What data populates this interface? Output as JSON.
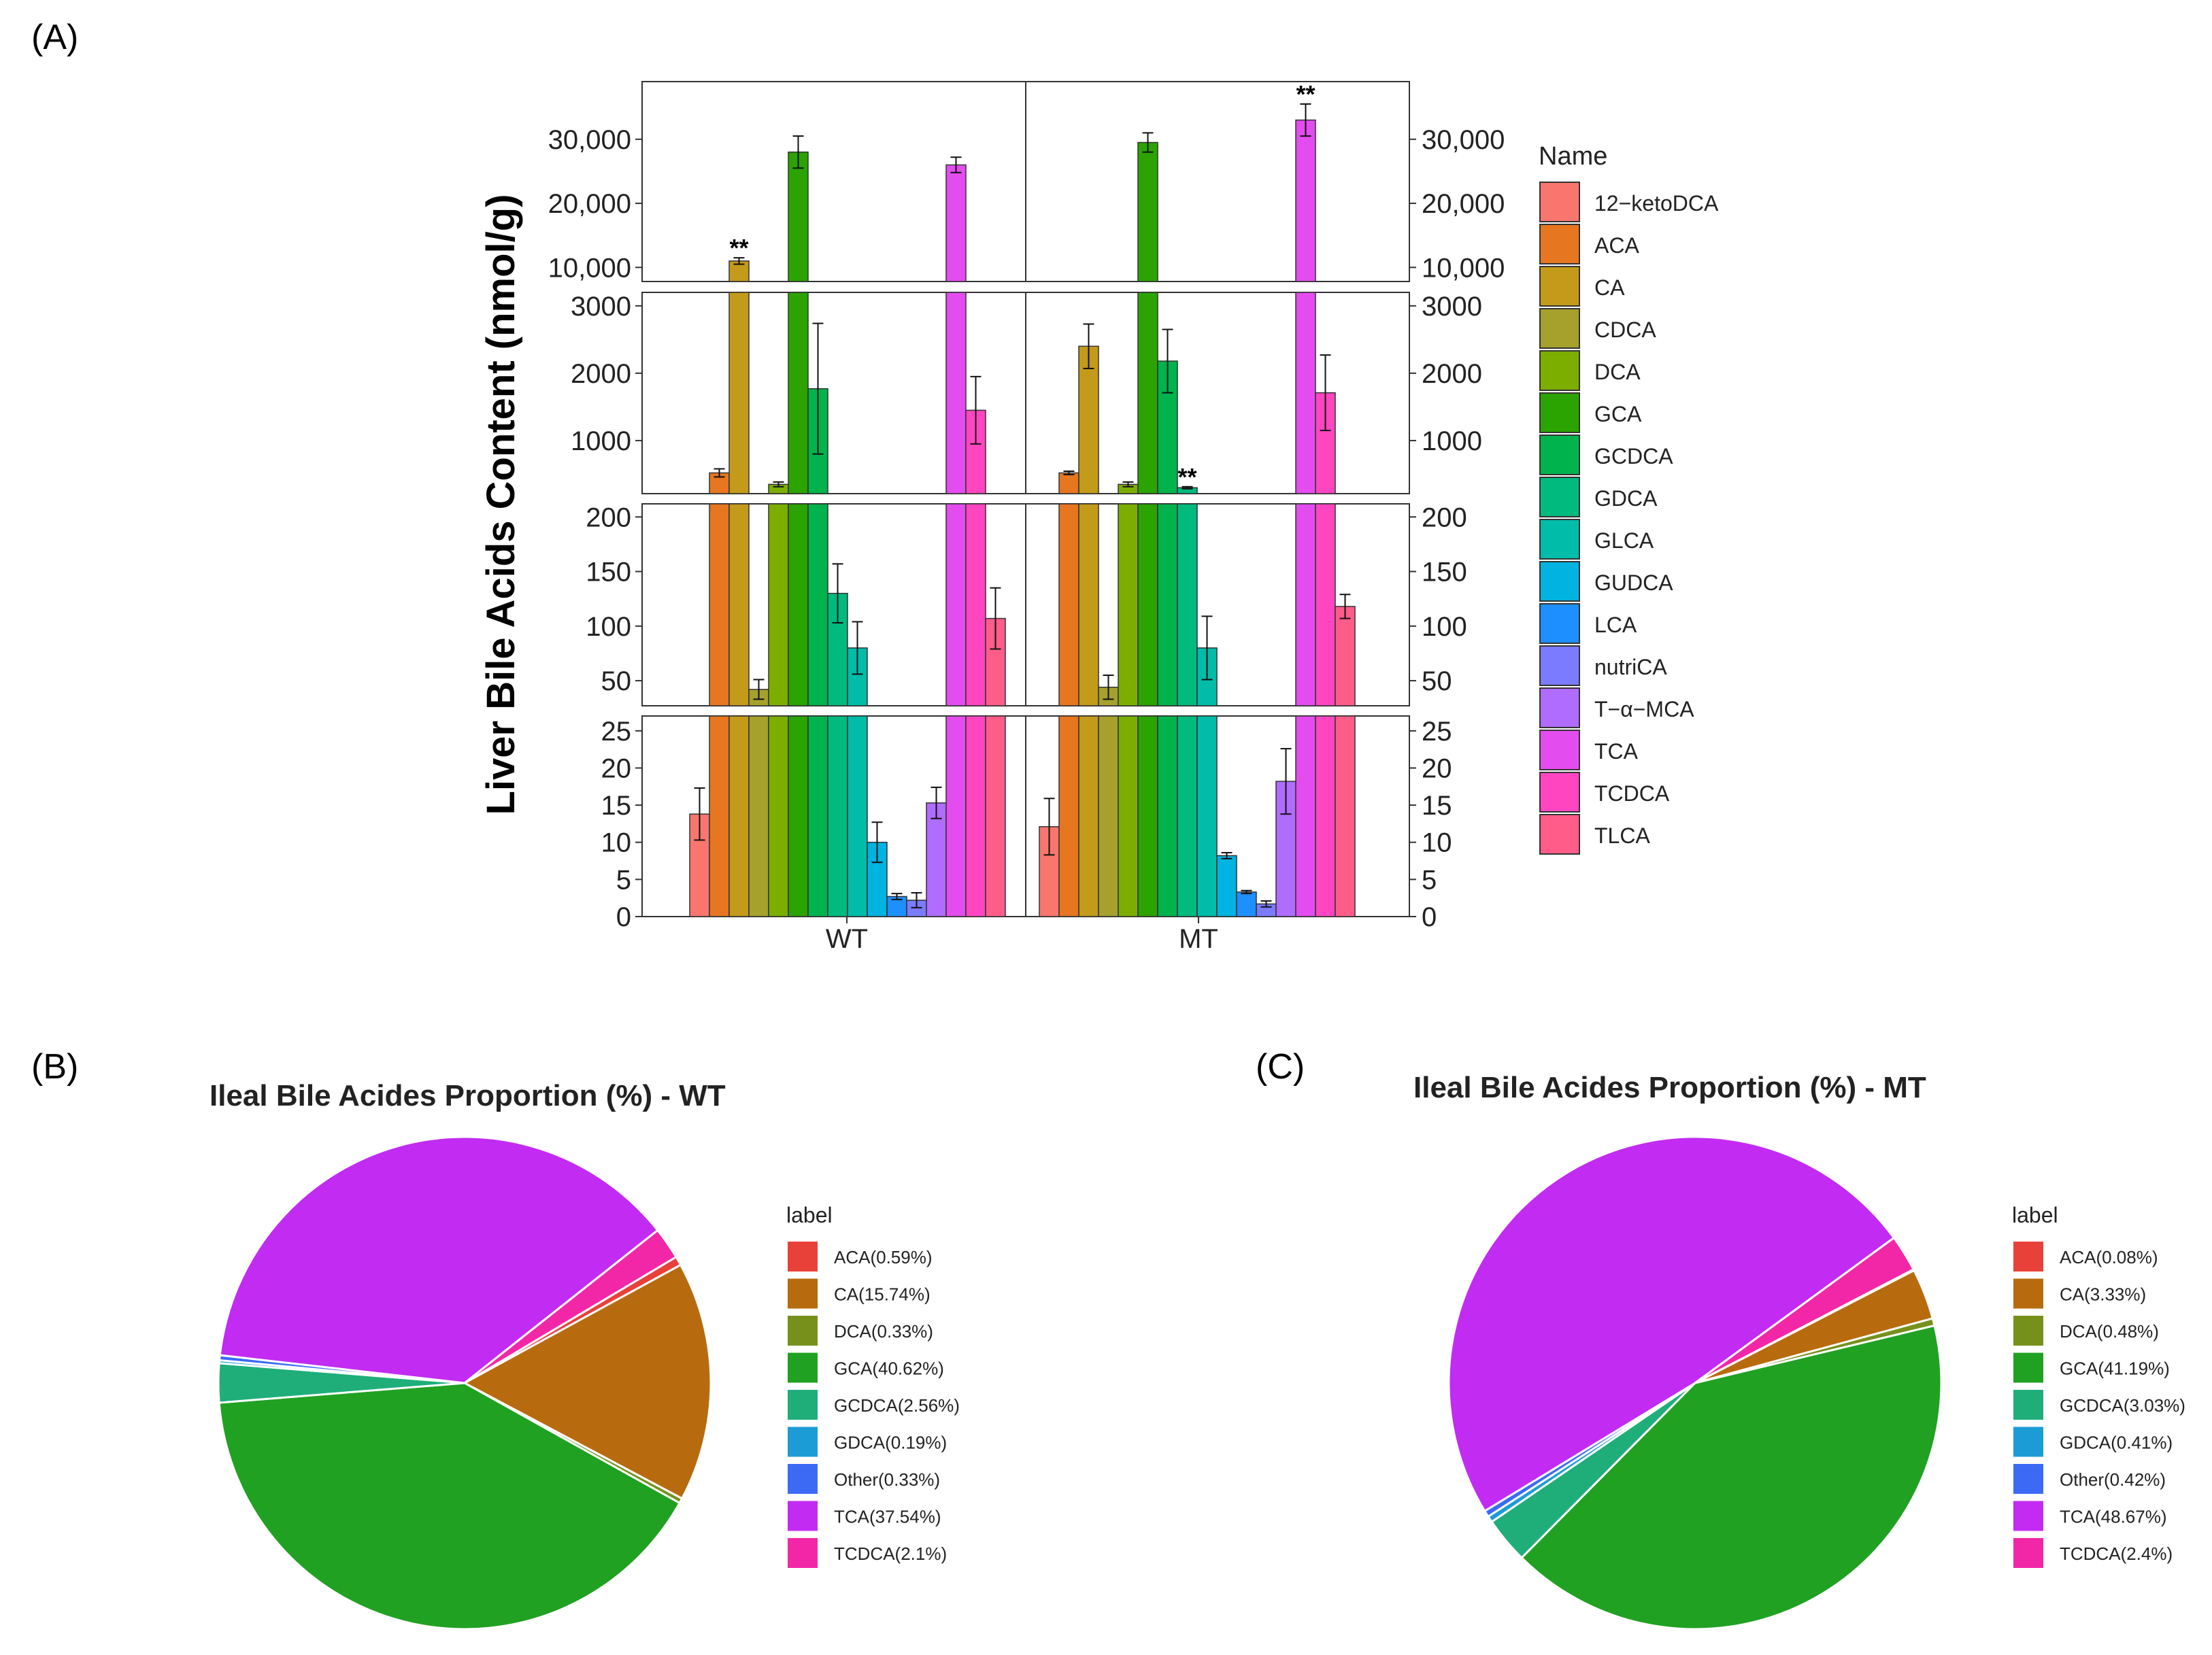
{
  "panel_labels": [
    "(A)",
    "(B)",
    "(C)"
  ],
  "chart_data": [
    {
      "type": "bar",
      "ylabel": "Liver Bile Acids Content (nmol/g)",
      "xlabel": "",
      "categories": [
        "WT",
        "MT"
      ],
      "legend_title": "Name",
      "legend_position": "right",
      "broken_axis_segments": [
        {
          "range": [
            0,
            27
          ],
          "ticks": [
            0,
            5,
            10,
            15,
            20,
            25
          ],
          "tick_labels": [
            "0",
            "5",
            "10",
            "15",
            "20",
            "25"
          ]
        },
        {
          "range": [
            27,
            212
          ],
          "ticks": [
            50,
            100,
            150,
            200
          ],
          "tick_labels": [
            "50",
            "100",
            "150",
            "200"
          ]
        },
        {
          "range": [
            212,
            3200
          ],
          "ticks": [
            1000,
            2000,
            3000
          ],
          "tick_labels": [
            "1000",
            "2000",
            "3000"
          ]
        },
        {
          "range": [
            7800,
            39000
          ],
          "ticks": [
            10000,
            20000,
            30000
          ],
          "tick_labels": [
            "10,000",
            "20,000",
            "30,000"
          ]
        }
      ],
      "series": [
        {
          "name": "12-ketoDCA",
          "color": "#F8766D",
          "values": [
            13.8,
            12.1
          ],
          "errors": [
            3.5,
            3.8
          ]
        },
        {
          "name": "ACA",
          "color": "#E6761F",
          "values": [
            520,
            520
          ],
          "errors": [
            60,
            25
          ]
        },
        {
          "name": "CA",
          "color": "#C49A1A",
          "values": [
            11000,
            2400
          ],
          "errors": [
            500,
            330
          ]
        },
        {
          "name": "CDCA",
          "color": "#A5A12C",
          "values": [
            42,
            44
          ],
          "errors": [
            9,
            11
          ]
        },
        {
          "name": "DCA",
          "color": "#7CAE00",
          "values": [
            350,
            350
          ],
          "errors": [
            35,
            35
          ]
        },
        {
          "name": "GCA",
          "color": "#2BA300",
          "values": [
            28000,
            29500
          ],
          "errors": [
            2500,
            1500
          ]
        },
        {
          "name": "GCDCA",
          "color": "#00B34D",
          "values": [
            1770,
            2180
          ],
          "errors": [
            970,
            470
          ]
        },
        {
          "name": "GDCA",
          "color": "#00BA7E",
          "values": [
            130,
            300
          ],
          "errors": [
            27,
            15
          ]
        },
        {
          "name": "GLCA",
          "color": "#00BCA8",
          "values": [
            80,
            80
          ],
          "errors": [
            24,
            29
          ]
        },
        {
          "name": "GUDCA",
          "color": "#00B3E0",
          "values": [
            10,
            8.2
          ],
          "errors": [
            2.7,
            0.4
          ]
        },
        {
          "name": "LCA",
          "color": "#1E8FFF",
          "values": [
            2.7,
            3.3
          ],
          "errors": [
            0.4,
            0.2
          ]
        },
        {
          "name": "nutriCA",
          "color": "#7B7BFF",
          "values": [
            2.2,
            1.7
          ],
          "errors": [
            1,
            0.4
          ]
        },
        {
          "name": "T-α-MCA",
          "color": "#B06BFF",
          "values": [
            15.3,
            18.2
          ],
          "errors": [
            2.1,
            4.4
          ]
        },
        {
          "name": "TCA",
          "color": "#E34CEE",
          "values": [
            26000,
            33000
          ],
          "errors": [
            1200,
            2500
          ]
        },
        {
          "name": "TCDCA",
          "color": "#FF45C0",
          "values": [
            1450,
            1710
          ],
          "errors": [
            500,
            560
          ]
        },
        {
          "name": "TLCA",
          "color": "#FF5C8A",
          "values": [
            107,
            118
          ],
          "errors": [
            28,
            11
          ]
        }
      ],
      "legend_labels": [
        "12−ketoDCA",
        "ACA",
        "CA",
        "CDCA",
        "DCA",
        "GCA",
        "GCDCA",
        "GDCA",
        "GLCA",
        "GUDCA",
        "LCA",
        "nutriCA",
        "T−α−MCA",
        "TCA",
        "TCDCA",
        "TLCA"
      ],
      "annotations": [
        {
          "text": "**",
          "category": "WT",
          "series": "CA"
        },
        {
          "text": "**",
          "category": "MT",
          "series": "GDCA"
        },
        {
          "text": "**",
          "category": "MT",
          "series": "TCA"
        }
      ]
    },
    {
      "type": "pie",
      "title": "Ileal Bile Acides  Proportion (%) - WT",
      "legend_title": "label",
      "legend_position": "right",
      "slices": [
        {
          "name": "ACA",
          "label": "ACA(0.59%)",
          "value": 0.59,
          "color": "#E8413A"
        },
        {
          "name": "CA",
          "label": "CA(15.74%)",
          "value": 15.74,
          "color": "#B86B0E"
        },
        {
          "name": "DCA",
          "label": "DCA(0.33%)",
          "value": 0.33,
          "color": "#76911B"
        },
        {
          "name": "GCA",
          "label": "GCA(40.62%)",
          "value": 40.62,
          "color": "#20A122"
        },
        {
          "name": "GCDCA",
          "label": "GCDCA(2.56%)",
          "value": 2.56,
          "color": "#1FAE7A"
        },
        {
          "name": "GDCA",
          "label": "GDCA(0.19%)",
          "value": 0.19,
          "color": "#1C9CD6"
        },
        {
          "name": "Other",
          "label": "Other(0.33%)",
          "value": 0.33,
          "color": "#3D6AF5"
        },
        {
          "name": "TCA",
          "label": "TCA(37.54%)",
          "value": 37.54,
          "color": "#C22BF2"
        },
        {
          "name": "TCDCA",
          "label": "TCDCA(2.1%)",
          "value": 2.1,
          "color": "#F227A7"
        }
      ]
    },
    {
      "type": "pie",
      "title": "Ileal Bile Acides  Proportion (%) - MT",
      "legend_title": "label",
      "legend_position": "right",
      "slices": [
        {
          "name": "ACA",
          "label": "ACA(0.08%)",
          "value": 0.08,
          "color": "#E8413A"
        },
        {
          "name": "CA",
          "label": "CA(3.33%)",
          "value": 3.33,
          "color": "#B86B0E"
        },
        {
          "name": "DCA",
          "label": "DCA(0.48%)",
          "value": 0.48,
          "color": "#76911B"
        },
        {
          "name": "GCA",
          "label": "GCA(41.19%)",
          "value": 41.19,
          "color": "#20A122"
        },
        {
          "name": "GCDCA",
          "label": "GCDCA(3.03%)",
          "value": 3.03,
          "color": "#1FAE7A"
        },
        {
          "name": "GDCA",
          "label": "GDCA(0.41%)",
          "value": 0.41,
          "color": "#1C9CD6"
        },
        {
          "name": "Other",
          "label": "Other(0.42%)",
          "value": 0.42,
          "color": "#3D6AF5"
        },
        {
          "name": "TCA",
          "label": "TCA(48.67%)",
          "value": 48.67,
          "color": "#C22BF2"
        },
        {
          "name": "TCDCA",
          "label": "TCDCA(2.4%)",
          "value": 2.4,
          "color": "#F227A7"
        }
      ]
    }
  ]
}
